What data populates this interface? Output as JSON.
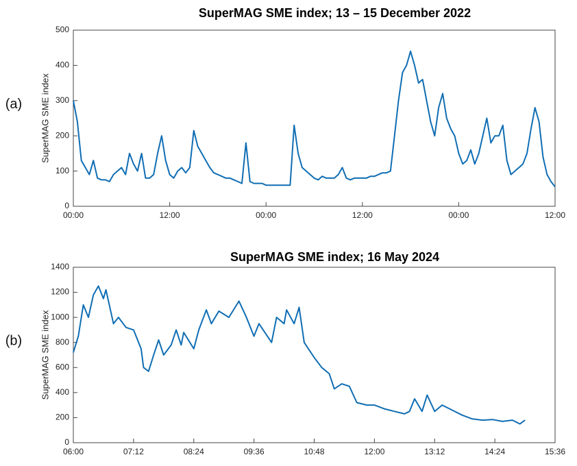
{
  "chart_data": [
    {
      "type": "line",
      "panel_label": "(a)",
      "title": "SuperMAG SME index; 13 – 15 December 2022",
      "ylabel": "SuperMAG SME index",
      "x": [
        0,
        0.5,
        1,
        1.5,
        2,
        2.5,
        3,
        3.5,
        4,
        4.5,
        5,
        5.5,
        6,
        6.5,
        7,
        7.5,
        8,
        8.5,
        9,
        9.5,
        10,
        10.5,
        11,
        11.5,
        12,
        12.5,
        13,
        13.5,
        14,
        14.5,
        15,
        15.5,
        16,
        16.5,
        17,
        17.5,
        18,
        18.5,
        19,
        19.5,
        20,
        20.5,
        21,
        21.5,
        22,
        22.5,
        23,
        23.5,
        24,
        24.5,
        25,
        25.5,
        26,
        26.5,
        27,
        27.5,
        28,
        28.5,
        29,
        29.5,
        30,
        30.5,
        31,
        31.5,
        32,
        32.5,
        33,
        33.5,
        34,
        34.5,
        35,
        35.5,
        36,
        36.5,
        37,
        37.5,
        38,
        38.5,
        39,
        39.5,
        40,
        40.5,
        41,
        41.5,
        42,
        42.5,
        43,
        43.5,
        44,
        44.5,
        45,
        45.5,
        46,
        46.5,
        47,
        47.5,
        48,
        48.5,
        49,
        49.5,
        50,
        50.5,
        51,
        51.5,
        52,
        52.5,
        53,
        53.5,
        54,
        54.5,
        55,
        55.5,
        56,
        56.5,
        57,
        57.5,
        58,
        58.5,
        59,
        59.5,
        60
      ],
      "series": [
        {
          "name": "SME",
          "color": "#0f6db3",
          "values": [
            300,
            240,
            130,
            110,
            90,
            130,
            80,
            75,
            75,
            70,
            90,
            100,
            110,
            90,
            150,
            120,
            100,
            150,
            80,
            80,
            90,
            150,
            200,
            130,
            90,
            80,
            100,
            110,
            95,
            110,
            215,
            170,
            150,
            130,
            110,
            95,
            90,
            85,
            80,
            80,
            75,
            70,
            65,
            180,
            70,
            65,
            65,
            65,
            60,
            60,
            60,
            60,
            60,
            60,
            60,
            230,
            150,
            110,
            100,
            90,
            80,
            75,
            85,
            80,
            80,
            80,
            90,
            110,
            80,
            75,
            80,
            80,
            80,
            80,
            85,
            85,
            90,
            95,
            95,
            100,
            200,
            300,
            380,
            400,
            440,
            400,
            350,
            360,
            300,
            240,
            200,
            280,
            320,
            250,
            220,
            200,
            150,
            120,
            130,
            160,
            120,
            150,
            200,
            250,
            180,
            200,
            200,
            230,
            130,
            90,
            100,
            110,
            120,
            150,
            220,
            280,
            240,
            140,
            90,
            70,
            55
          ]
        }
      ],
      "xlim": [
        0,
        60
      ],
      "ylim": [
        0,
        500
      ],
      "xticks": [
        {
          "value": 0,
          "label": "00:00"
        },
        {
          "value": 12,
          "label": "12:00"
        },
        {
          "value": 24,
          "label": "00:00"
        },
        {
          "value": 36,
          "label": "12:00"
        },
        {
          "value": 48,
          "label": "00:00"
        },
        {
          "value": 60,
          "label": "12:00"
        }
      ],
      "yticks": [
        0,
        100,
        200,
        300,
        400,
        500
      ]
    },
    {
      "type": "line",
      "panel_label": "(b)",
      "title": "SuperMAG SME index; 16 May 2024",
      "ylabel": "SuperMAG SME index",
      "x": [
        6.0,
        6.1,
        6.2,
        6.3,
        6.4,
        6.5,
        6.6,
        6.65,
        6.8,
        6.9,
        7.05,
        7.2,
        7.35,
        7.4,
        7.5,
        7.6,
        7.7,
        7.8,
        7.95,
        8.05,
        8.15,
        8.2,
        8.4,
        8.5,
        8.65,
        8.75,
        8.9,
        9.1,
        9.3,
        9.45,
        9.6,
        9.7,
        9.95,
        10.05,
        10.2,
        10.25,
        10.4,
        10.5,
        10.6,
        10.8,
        10.95,
        11.1,
        11.2,
        11.35,
        11.5,
        11.65,
        11.85,
        12.0,
        12.2,
        12.4,
        12.6,
        12.7,
        12.8,
        12.95,
        13.05,
        13.2,
        13.35,
        13.55,
        13.75,
        13.95,
        14.15,
        14.35,
        14.55,
        14.75,
        14.9,
        15.0
      ],
      "series": [
        {
          "name": "SME",
          "color": "#0f6db3",
          "values": [
            720,
            850,
            1100,
            1000,
            1180,
            1250,
            1150,
            1220,
            950,
            1000,
            920,
            900,
            750,
            600,
            570,
            700,
            820,
            700,
            780,
            900,
            780,
            880,
            750,
            900,
            1060,
            950,
            1050,
            1000,
            1130,
            1000,
            850,
            950,
            800,
            1000,
            950,
            1060,
            950,
            1080,
            800,
            680,
            600,
            550,
            430,
            470,
            450,
            320,
            300,
            300,
            270,
            250,
            230,
            250,
            350,
            250,
            380,
            250,
            300,
            260,
            220,
            190,
            180,
            185,
            170,
            180,
            150,
            180
          ]
        }
      ],
      "xlim": [
        6,
        15.6
      ],
      "ylim": [
        0,
        1400
      ],
      "xticks": [
        {
          "value": 6,
          "label": "06:00"
        },
        {
          "value": 7.2,
          "label": "07:12"
        },
        {
          "value": 8.4,
          "label": "08:24"
        },
        {
          "value": 9.6,
          "label": "09:36"
        },
        {
          "value": 10.8,
          "label": "10:48"
        },
        {
          "value": 12,
          "label": "12:00"
        },
        {
          "value": 13.2,
          "label": "13:12"
        },
        {
          "value": 14.4,
          "label": "14:24"
        },
        {
          "value": 15.6,
          "label": "15:36"
        }
      ],
      "yticks": [
        0,
        200,
        400,
        600,
        800,
        1000,
        1200,
        1400
      ]
    }
  ]
}
